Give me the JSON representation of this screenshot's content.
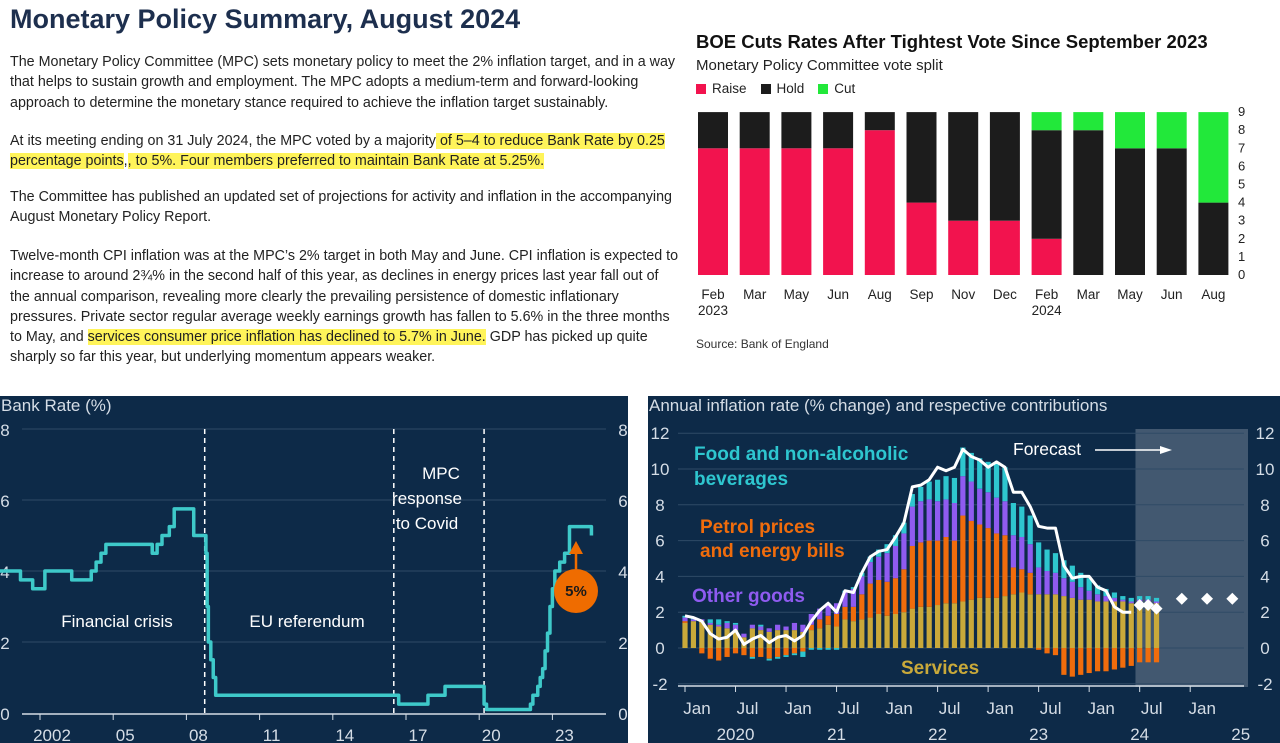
{
  "summary": {
    "title": "Monetary Policy Summary, August 2024",
    "p1": "The Monetary Policy Committee (MPC) sets monetary policy to meet the 2% inflation target, and in a way that helps to sustain growth and employment. The MPC adopts a medium-term and forward-looking approach to determine the monetary stance required to achieve the inflation target sustainably.",
    "p2_a": "At its meeting ending on 31 July 2024, the MPC voted by a majority",
    "p2_b": " of 5–4 to reduce Bank Rate by 0.25 percentage points",
    "p2_c": ", to 5%. Four members preferred to maintain Bank Rate at 5.25%.",
    "p3": "The Committee has published an updated set of projections for activity and inflation in the accompanying August Monetary Policy Report.",
    "p4_a": "Twelve-month CPI inflation was at the MPC’s 2% target in both May and June. CPI inflation is expected to increase to around 2¾% in the second half of this year, as declines in energy prices last year fall out of the annual comparison, revealing more clearly the prevailing persistence of domestic inflationary pressures. Private sector regular average weekly earnings growth has fallen to 5.6% in the three months to May, and ",
    "p4_b": "services consumer price inflation has declined to 5.7% in June.",
    "p4_c": " GDP has picked up quite sharply so far this year, but underlying momentum appears weaker."
  },
  "vote_chart": {
    "title": "BOE Cuts Rates After Tightest Vote Since September 2023",
    "subtitle": "Monetary Policy Committee vote split",
    "source": "Source: Bank of England",
    "colors": {
      "raise": "#f2134e",
      "hold": "#1c1c1c",
      "cut": "#22e83a"
    }
  },
  "bank_rate": {
    "title": "Bank Rate (%)",
    "annotations": {
      "financial_crisis": "Financial crisis",
      "eu_referendum": "EU referendum",
      "covid_l1": "MPC",
      "covid_l2": "response",
      "covid_l3": "to Covid",
      "badge": "5%"
    },
    "colors": {
      "line": "#3ec9c9",
      "badge": "#ef6c00"
    }
  },
  "inflation": {
    "title": "Annual inflation rate (% change) and respective contributions",
    "labels": {
      "food_l1": "Food and non-alcoholic",
      "food_l2": "beverages",
      "petrol_l1": "Petrol prices",
      "petrol_l2": "and energy bills",
      "other": "Other goods",
      "services": "Services",
      "forecast": "Forecast"
    },
    "colors": {
      "food": "#2ec6cf",
      "energy": "#f06c0c",
      "other": "#8f5bf0",
      "services": "#c9a93a",
      "line": "#ffffff"
    }
  },
  "chart_data": [
    {
      "type": "bar",
      "title": "BOE Cuts Rates After Tightest Vote Since September 2023",
      "subtitle": "Monetary Policy Committee vote split",
      "categories": [
        "Feb 2023",
        "Mar",
        "May",
        "Jun",
        "Aug",
        "Sep",
        "Nov",
        "Dec",
        "Feb 2024",
        "Mar",
        "May",
        "Jun",
        "Aug"
      ],
      "series": [
        {
          "name": "Raise",
          "values": [
            7,
            7,
            7,
            7,
            8,
            4,
            3,
            3,
            2,
            0,
            0,
            0,
            0
          ]
        },
        {
          "name": "Hold",
          "values": [
            2,
            2,
            2,
            2,
            1,
            5,
            6,
            6,
            6,
            8,
            7,
            7,
            4
          ]
        },
        {
          "name": "Cut",
          "values": [
            0,
            0,
            0,
            0,
            0,
            0,
            0,
            0,
            1,
            1,
            2,
            2,
            5
          ]
        }
      ],
      "ylim": [
        0,
        9
      ],
      "yticks": [
        "0",
        "1",
        "2",
        "3",
        "4",
        "5",
        "6",
        "7",
        "8",
        "9"
      ],
      "stacked": true,
      "legend": "top-left"
    },
    {
      "type": "line",
      "title": "Bank Rate (%)",
      "x": [
        2000.0,
        2001.0,
        2001.2,
        2001.4,
        2001.7,
        2001.9,
        2002.2,
        2003.0,
        2003.3,
        2003.8,
        2004.1,
        2004.3,
        2004.5,
        2004.7,
        2005.6,
        2006.6,
        2006.8,
        2007.0,
        2007.3,
        2007.5,
        2007.9,
        2008.3,
        2008.75,
        2008.8,
        2008.85,
        2008.9,
        2009.0,
        2009.1,
        2009.2,
        2016.6,
        2016.7,
        2017.9,
        2018.6,
        2020.2,
        2020.3,
        2021.9,
        2022.1,
        2022.2,
        2022.4,
        2022.5,
        2022.6,
        2022.7,
        2022.8,
        2022.9,
        2023.0,
        2023.1,
        2023.3,
        2023.5,
        2023.7,
        2024.6
      ],
      "values": [
        4.0,
        4.0,
        3.75,
        3.75,
        3.5,
        3.5,
        4.0,
        4.0,
        3.75,
        3.75,
        4.0,
        4.25,
        4.5,
        4.75,
        4.75,
        4.5,
        4.75,
        5.0,
        5.25,
        5.75,
        5.75,
        5.0,
        5.0,
        4.5,
        3.0,
        2.0,
        1.5,
        1.0,
        0.5,
        0.5,
        0.25,
        0.5,
        0.75,
        0.25,
        0.1,
        0.1,
        0.25,
        0.5,
        0.75,
        1.0,
        1.25,
        1.75,
        2.25,
        3.0,
        3.5,
        4.0,
        4.25,
        4.5,
        5.25,
        5.0
      ],
      "xticks": [
        "2002",
        "05",
        "08",
        "11",
        "14",
        "17",
        "20",
        "23"
      ],
      "yticks": [
        "0",
        "2",
        "4",
        "6",
        "8"
      ],
      "ylim": [
        0,
        8
      ],
      "grid": true
    },
    {
      "type": "bar",
      "title": "Annual inflation rate (% change) and respective contributions",
      "x_start": "Jan 2020",
      "xticks": [
        "Jan",
        "Jul",
        "Jan",
        "Jul",
        "Jan",
        "Jul",
        "Jan",
        "Jul",
        "Jan",
        "Jul",
        "Jan"
      ],
      "xtick_years": [
        "2020",
        "21",
        "22",
        "23",
        "24",
        "25"
      ],
      "categories": [
        "2020-01",
        "2020-02",
        "2020-03",
        "2020-04",
        "2020-05",
        "2020-06",
        "2020-07",
        "2020-08",
        "2020-09",
        "2020-10",
        "2020-11",
        "2020-12",
        "2021-01",
        "2021-02",
        "2021-03",
        "2021-04",
        "2021-05",
        "2021-06",
        "2021-07",
        "2021-08",
        "2021-09",
        "2021-10",
        "2021-11",
        "2021-12",
        "2022-01",
        "2022-02",
        "2022-03",
        "2022-04",
        "2022-05",
        "2022-06",
        "2022-07",
        "2022-08",
        "2022-09",
        "2022-10",
        "2022-11",
        "2022-12",
        "2023-01",
        "2023-02",
        "2023-03",
        "2023-04",
        "2023-05",
        "2023-06",
        "2023-07",
        "2023-08",
        "2023-09",
        "2023-10",
        "2023-11",
        "2023-12",
        "2024-01",
        "2024-02",
        "2024-03",
        "2024-04",
        "2024-05",
        "2024-06",
        "2024-07",
        "2024-08",
        "2024-09"
      ],
      "series": [
        {
          "name": "Services",
          "values": [
            1.4,
            1.5,
            1.5,
            1.3,
            1.2,
            1.1,
            1.0,
            0.6,
            1.1,
            1.0,
            0.9,
            1.0,
            1.0,
            1.0,
            0.9,
            1.0,
            1.1,
            1.3,
            1.2,
            1.6,
            1.5,
            1.6,
            1.7,
            1.9,
            1.8,
            1.9,
            2.0,
            2.2,
            2.3,
            2.3,
            2.4,
            2.5,
            2.5,
            2.6,
            2.7,
            2.8,
            2.8,
            2.8,
            2.9,
            3.0,
            3.1,
            3.0,
            3.0,
            3.0,
            3.0,
            2.9,
            2.8,
            2.7,
            2.7,
            2.6,
            2.6,
            2.6,
            2.6,
            2.5,
            2.6,
            2.6,
            2.5
          ]
        },
        {
          "name": "Petrol prices and energy bills",
          "values": [
            0.1,
            0.0,
            -0.3,
            -0.6,
            -0.7,
            -0.5,
            -0.3,
            -0.4,
            -0.5,
            -0.5,
            -0.6,
            -0.5,
            -0.4,
            -0.3,
            -0.2,
            0.3,
            0.5,
            0.5,
            0.7,
            0.7,
            0.8,
            1.4,
            1.9,
            1.9,
            1.9,
            2.0,
            2.4,
            3.5,
            3.6,
            3.7,
            3.6,
            3.7,
            3.5,
            4.8,
            4.4,
            4.1,
            3.9,
            3.6,
            3.4,
            1.5,
            1.3,
            1.2,
            -0.1,
            -0.3,
            -0.4,
            -1.5,
            -1.6,
            -1.5,
            -1.4,
            -1.3,
            -1.3,
            -1.2,
            -1.1,
            -1.0,
            -0.8,
            -0.8,
            -0.8
          ]
        },
        {
          "name": "Other goods",
          "values": [
            0.2,
            0.1,
            0.1,
            0.1,
            0.1,
            0.3,
            0.3,
            0.2,
            0.2,
            0.2,
            0.2,
            0.3,
            0.2,
            0.4,
            0.4,
            0.6,
            0.6,
            0.7,
            0.6,
            0.8,
            1.0,
            1.0,
            1.2,
            1.3,
            1.6,
            1.8,
            2.0,
            2.2,
            2.3,
            2.3,
            2.2,
            2.1,
            2.1,
            2.2,
            2.2,
            2.0,
            2.0,
            2.0,
            1.9,
            1.8,
            1.8,
            1.6,
            1.5,
            1.3,
            1.2,
            1.0,
            0.9,
            0.7,
            0.5,
            0.4,
            0.3,
            0.2,
            0.1,
            0.1,
            0.1,
            0.1,
            0.1
          ]
        },
        {
          "name": "Food and non-alcoholic beverages",
          "values": [
            0.1,
            0.1,
            0.0,
            0.2,
            0.3,
            0.1,
            0.1,
            0.0,
            -0.1,
            0.1,
            -0.1,
            -0.1,
            -0.1,
            -0.1,
            -0.3,
            -0.1,
            -0.1,
            -0.1,
            -0.1,
            0.1,
            0.1,
            0.2,
            0.3,
            0.4,
            0.5,
            0.6,
            0.6,
            0.7,
            0.8,
            1.0,
            1.2,
            1.3,
            1.4,
            1.6,
            1.6,
            1.7,
            1.7,
            1.9,
            1.9,
            1.8,
            1.7,
            1.6,
            1.4,
            1.2,
            1.1,
            1.0,
            0.9,
            0.8,
            0.7,
            0.5,
            0.4,
            0.3,
            0.2,
            0.2,
            0.2,
            0.2,
            0.2
          ]
        }
      ],
      "headline": [
        1.8,
        1.7,
        1.5,
        0.8,
        0.5,
        0.6,
        1.0,
        0.2,
        0.5,
        0.7,
        0.3,
        0.6,
        0.7,
        0.4,
        0.7,
        1.5,
        2.1,
        2.5,
        2.0,
        3.2,
        3.1,
        4.2,
        5.1,
        5.4,
        5.5,
        6.2,
        7.0,
        9.0,
        9.1,
        9.4,
        10.1,
        9.9,
        10.1,
        11.1,
        10.7,
        10.5,
        10.1,
        10.4,
        10.1,
        8.7,
        8.7,
        7.9,
        6.8,
        6.7,
        6.7,
        4.6,
        3.9,
        4.0,
        4.0,
        3.4,
        3.2,
        2.3,
        2.0,
        2.0
      ],
      "forecast_points": [
        {
          "x": "2024-07",
          "y": 2.4
        },
        {
          "x": "2024-08",
          "y": 2.4
        },
        {
          "x": "2024-09",
          "y": 2.2
        },
        {
          "x": "2024-12",
          "y": 2.75
        },
        {
          "x": "2025-03",
          "y": 2.75
        },
        {
          "x": "2025-06",
          "y": 2.75
        }
      ],
      "forecast_start": "2024-07",
      "ylim": [
        -2,
        12
      ],
      "yticks": [
        "-2",
        "0",
        "2",
        "4",
        "6",
        "8",
        "10",
        "12"
      ]
    }
  ]
}
